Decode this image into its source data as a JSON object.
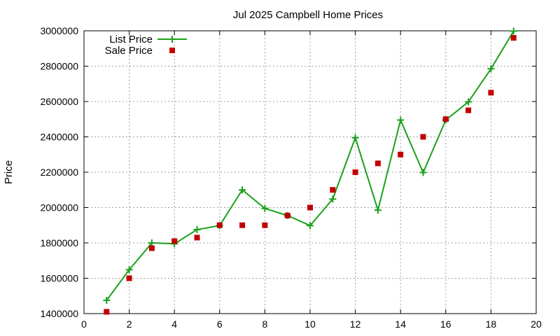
{
  "chart_data": {
    "type": "line",
    "title": "Jul 2025 Campbell Home Prices",
    "xlabel": "",
    "ylabel": "Price",
    "xlim": [
      0,
      20
    ],
    "ylim": [
      1400000,
      3000000
    ],
    "xticks": [
      0,
      2,
      4,
      6,
      8,
      10,
      12,
      14,
      16,
      18,
      20
    ],
    "yticks": [
      1400000,
      1600000,
      1800000,
      2000000,
      2200000,
      2400000,
      2600000,
      2800000,
      3000000
    ],
    "grid": true,
    "legend_position": "top-left",
    "series": [
      {
        "name": "List Price",
        "style": "line-plus",
        "color": "#1aa01a",
        "x": [
          1,
          2,
          3,
          4,
          5,
          6,
          7,
          8,
          9,
          10,
          11,
          12,
          13,
          14,
          15,
          16,
          17,
          18,
          19
        ],
        "y": [
          1475000,
          1648000,
          1800000,
          1795000,
          1875000,
          1898000,
          2100000,
          1995000,
          1955000,
          1898000,
          2048000,
          2395000,
          1985000,
          2495000,
          2198000,
          2495000,
          2598000,
          2785000,
          2998000
        ]
      },
      {
        "name": "Sale Price",
        "style": "square",
        "color": "#c00000",
        "x": [
          1,
          2,
          3,
          4,
          5,
          6,
          7,
          8,
          9,
          10,
          11,
          12,
          13,
          14,
          15,
          16,
          17,
          18,
          19
        ],
        "y": [
          1410000,
          1600000,
          1770000,
          1810000,
          1830000,
          1900000,
          1900000,
          1900000,
          1955000,
          2000000,
          2100000,
          2200000,
          2250000,
          2300000,
          2400000,
          2500000,
          2550000,
          2650000,
          2960000
        ]
      }
    ]
  }
}
